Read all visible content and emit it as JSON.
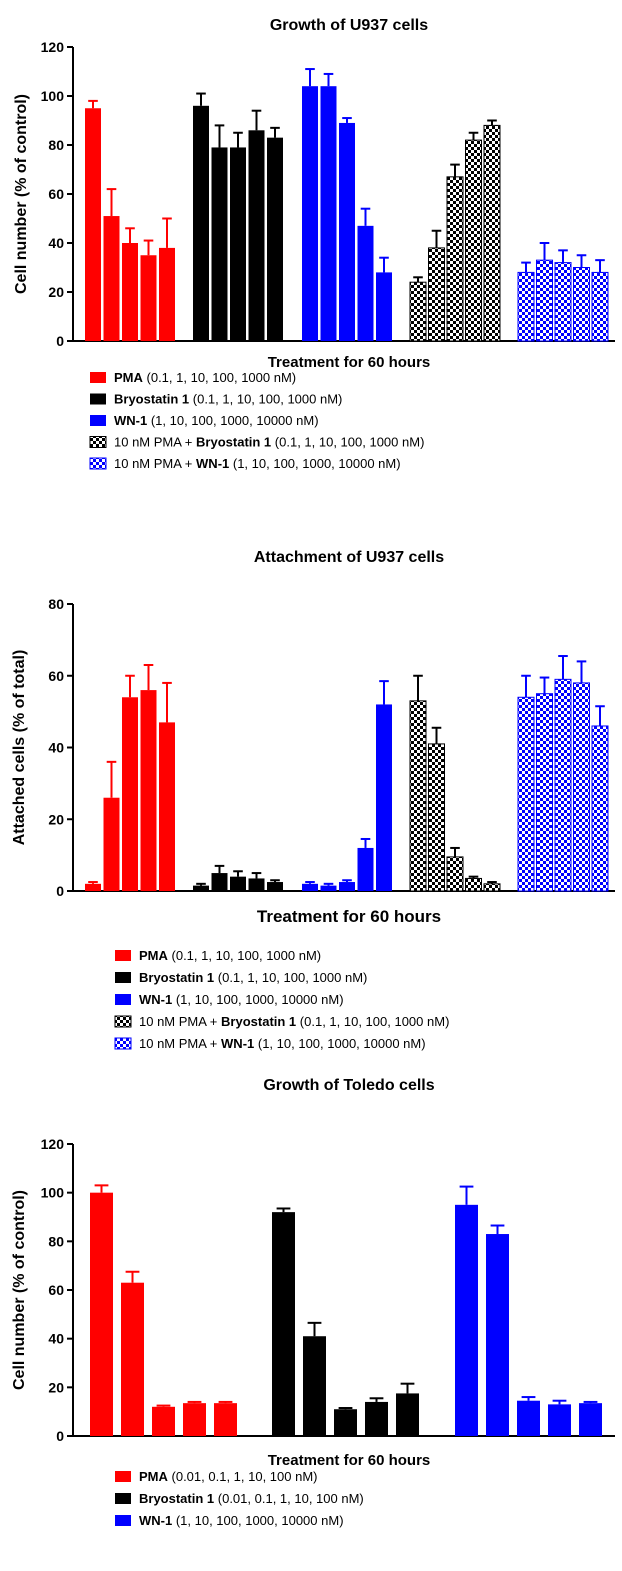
{
  "charts": [
    {
      "type": "bar",
      "title": "Growth of U937 cells",
      "xlabel": "Treatment for 60 hours",
      "ylabel": "Cell number (% of control)",
      "ylim": [
        0,
        120
      ],
      "yticks": [
        0,
        20,
        40,
        60,
        80,
        100,
        120
      ],
      "grid": false,
      "legend_position": "bottom",
      "series": [
        {
          "name": "PMA",
          "style": "solid",
          "color": "#ff0000",
          "values": [
            95,
            51,
            40,
            35,
            38
          ],
          "errors": [
            3,
            11,
            6,
            6,
            12
          ]
        },
        {
          "name": "Bryostatin 1",
          "style": "solid",
          "color": "#000000",
          "values": [
            96,
            79,
            79,
            86,
            83
          ],
          "errors": [
            5,
            9,
            6,
            8,
            4
          ]
        },
        {
          "name": "WN-1",
          "style": "solid",
          "color": "#0000ff",
          "values": [
            104,
            104,
            89,
            47,
            28
          ],
          "errors": [
            7,
            5,
            2,
            7,
            6
          ]
        },
        {
          "name": "10 nM PMA + Bryostatin 1",
          "style": "checker",
          "color": "#000000",
          "values": [
            24,
            38,
            67,
            82,
            88
          ],
          "errors": [
            2,
            7,
            5,
            3,
            2
          ]
        },
        {
          "name": "10 nM PMA + WN-1",
          "style": "checker",
          "color": "#0000ff",
          "values": [
            28,
            33,
            32,
            30,
            28
          ],
          "errors": [
            4,
            7,
            5,
            5,
            5
          ]
        }
      ],
      "legend": [
        {
          "bold": "PMA",
          "prefix": "",
          "detail": "(0.1, 1, 10, 100, 1000 nM)"
        },
        {
          "bold": "Bryostatin 1",
          "prefix": "",
          "detail": "(0.1, 1, 10, 100, 1000 nM)"
        },
        {
          "bold": "WN-1",
          "prefix": "",
          "detail": "(1, 10, 100, 1000, 10000 nM)"
        },
        {
          "bold": "Bryostatin 1",
          "prefix": "10 nM PMA +",
          "detail": "(0.1, 1, 10, 100, 1000 nM)"
        },
        {
          "bold": "WN-1",
          "prefix": "10 nM PMA +",
          "detail": "(1, 10, 100, 1000, 10000 nM)"
        }
      ]
    },
    {
      "type": "bar",
      "title": "Attachment of U937 cells",
      "xlabel": "Treatment for 60 hours",
      "ylabel": "Attached cells (% of total)",
      "ylim": [
        0,
        80
      ],
      "yticks": [
        0,
        20,
        40,
        60,
        80
      ],
      "grid": false,
      "legend_position": "bottom",
      "series": [
        {
          "name": "PMA",
          "style": "solid",
          "color": "#ff0000",
          "values": [
            2,
            26,
            54,
            56,
            47
          ],
          "errors": [
            0.5,
            10,
            6,
            7,
            11
          ]
        },
        {
          "name": "Bryostatin 1",
          "style": "solid",
          "color": "#000000",
          "values": [
            1.5,
            5,
            4,
            3.5,
            2.5
          ],
          "errors": [
            0.5,
            2,
            1.5,
            1.5,
            0.5
          ]
        },
        {
          "name": "WN-1",
          "style": "solid",
          "color": "#0000ff",
          "values": [
            2,
            1.5,
            2.5,
            12,
            52
          ],
          "errors": [
            0.5,
            0.5,
            0.5,
            2.5,
            6.5
          ]
        },
        {
          "name": "10 nM PMA + Bryostatin 1",
          "style": "checker",
          "color": "#000000",
          "values": [
            53,
            41,
            9.5,
            3.5,
            2
          ],
          "errors": [
            7,
            4.5,
            2.5,
            0.5,
            0.5
          ]
        },
        {
          "name": "10 nM PMA + WN-1",
          "style": "checker",
          "color": "#0000ff",
          "values": [
            54,
            55,
            59,
            58,
            46
          ],
          "errors": [
            6,
            4.5,
            6.5,
            6,
            5.5
          ]
        }
      ],
      "legend": [
        {
          "bold": "PMA",
          "prefix": "",
          "detail": "(0.1, 1, 10, 100, 1000 nM)"
        },
        {
          "bold": "Bryostatin 1",
          "prefix": "",
          "detail": "(0.1, 1, 10, 100, 1000 nM)"
        },
        {
          "bold": "WN-1",
          "prefix": "",
          "detail": "(1, 10, 100, 1000, 10000 nM)"
        },
        {
          "bold": "Bryostatin 1",
          "prefix": "10 nM PMA +",
          "detail": "(0.1, 1, 10, 100, 1000 nM)"
        },
        {
          "bold": "WN-1",
          "prefix": "10 nM PMA +",
          "detail": "(1, 10, 100, 1000, 10000 nM)"
        }
      ]
    },
    {
      "type": "bar",
      "title": "Growth of Toledo cells",
      "xlabel": "Treatment for 60 hours",
      "ylabel": "Cell number (% of control)",
      "ylim": [
        0,
        120
      ],
      "yticks": [
        0,
        20,
        40,
        60,
        80,
        100,
        120
      ],
      "grid": false,
      "legend_position": "bottom",
      "series": [
        {
          "name": "PMA",
          "style": "solid",
          "color": "#ff0000",
          "values": [
            100,
            63,
            12,
            13.5,
            13.5
          ],
          "errors": [
            3,
            4.5,
            0.5,
            0.5,
            0.5
          ]
        },
        {
          "name": "Bryostatin 1",
          "style": "solid",
          "color": "#000000",
          "values": [
            92,
            41,
            11,
            14,
            17.5
          ],
          "errors": [
            1.5,
            5.5,
            0.5,
            1.5,
            4
          ]
        },
        {
          "name": "WN-1",
          "style": "solid",
          "color": "#0000ff",
          "values": [
            95,
            83,
            14.5,
            13,
            13.5
          ],
          "errors": [
            7.5,
            3.5,
            1.5,
            1.5,
            0.5
          ]
        }
      ],
      "legend": [
        {
          "bold": "PMA",
          "prefix": "",
          "detail": "(0.01, 0.1, 1, 10, 100 nM)"
        },
        {
          "bold": "Bryostatin 1",
          "prefix": "",
          "detail": "(0.01, 0.1, 1, 10, 100 nM)"
        },
        {
          "bold": "WN-1",
          "prefix": "",
          "detail": "(1, 10, 100, 1000, 10000 nM)"
        }
      ]
    }
  ]
}
